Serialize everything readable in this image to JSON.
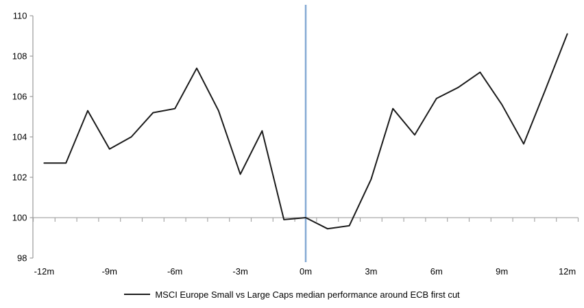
{
  "chart_data": {
    "type": "line",
    "x_months": [
      -12,
      -11,
      -10,
      -9,
      -8,
      -7,
      -6,
      -5,
      -4,
      -3,
      -2,
      -1,
      0,
      1,
      2,
      3,
      4,
      5,
      6,
      7,
      8,
      9,
      10,
      11,
      12
    ],
    "series": [
      {
        "name": "MSCI Europe Small vs Large Caps median performance around ECB first cut",
        "color": "#1a1a1a",
        "values": [
          102.7,
          102.7,
          105.3,
          103.4,
          104.0,
          105.2,
          105.4,
          107.4,
          105.3,
          102.15,
          104.3,
          99.9,
          100.0,
          99.45,
          99.6,
          101.9,
          105.4,
          104.1,
          105.9,
          106.45,
          107.2,
          105.6,
          103.65,
          106.35,
          109.1
        ]
      }
    ],
    "title": "",
    "xlabel": "",
    "ylabel": "",
    "ylim": [
      98,
      110
    ],
    "yticks": [
      98,
      100,
      102,
      104,
      106,
      108,
      110
    ],
    "xtick_months": [
      -12,
      -9,
      -6,
      -3,
      0,
      3,
      6,
      9,
      12
    ],
    "xtick_labels": [
      "-12m",
      "-9m",
      "-6m",
      "-3m",
      "0m",
      "3m",
      "6m",
      "9m",
      "12m"
    ],
    "baseline_value": 100,
    "event_marker": {
      "month": 0,
      "color": "#84a9d3"
    },
    "grid": "off",
    "legend_position": "bottom-center",
    "colors": {
      "axis": "#9a9a9a",
      "baseline": "#a6a6a6",
      "tick_label": "#000000"
    }
  },
  "legend": {
    "label": "MSCI Europe Small vs Large Caps median performance around ECB first cut"
  }
}
